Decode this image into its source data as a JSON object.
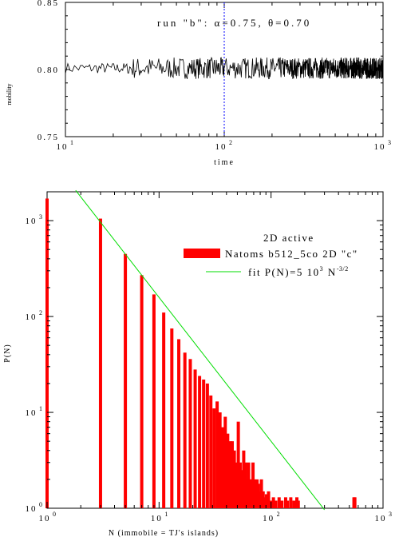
{
  "chart_data": [
    {
      "type": "line",
      "annotation": "run \"b\":   α=0.75,  θ=0.70",
      "xlabel": "time",
      "ylabel": "mobility",
      "x_scale": "log",
      "xlim": [
        10,
        1000
      ],
      "ylim": [
        0.75,
        0.85
      ],
      "x_tick_bases": [
        "1",
        "1",
        "1"
      ],
      "x_tick_exps": [
        "1",
        "2",
        "3"
      ],
      "y_ticks": [
        "0.75",
        "0.80",
        "0.85"
      ],
      "y_tick_values": [
        0.75,
        0.8,
        0.85
      ],
      "marker_line_x": 100,
      "marker_color": "#0000ff",
      "line_color": "#000000",
      "mean_value": 0.801,
      "noise_small": 0.004,
      "noise_large": 0.008,
      "grid": false
    },
    {
      "type": "bar",
      "xlabel": "N  (immobile = TJ's islands)",
      "ylabel": "P(N)",
      "x_scale": "log",
      "y_scale": "log",
      "xlim": [
        1,
        1000
      ],
      "ylim": [
        1,
        2000
      ],
      "x_tick_exps": [
        "0",
        "1",
        "2",
        "3"
      ],
      "y_tick_exps": [
        "0",
        "1",
        "2",
        "3"
      ],
      "tick_base": "10",
      "bar_color": "#ff0000",
      "fit_color": "#00dd00",
      "legend": {
        "title": "2D  active",
        "bar_label": "Natoms b512_5co 2D \"c\"",
        "fit_label": "fit P(N)=5 10",
        "fit_exp1": "3",
        "fit_mid": " N",
        "fit_exp2": "-3/2",
        "placement": "top-right"
      },
      "fit_coefficient": 5000,
      "fit_exponent": -1.5,
      "fit_range": [
        1.8,
        300
      ],
      "values": [
        [
          1,
          1700
        ],
        [
          3,
          1050
        ],
        [
          5,
          450
        ],
        [
          7,
          270
        ],
        [
          9,
          170
        ],
        [
          11,
          110
        ],
        [
          13,
          75
        ],
        [
          15,
          58
        ],
        [
          17,
          42
        ],
        [
          19,
          36
        ],
        [
          21,
          28
        ],
        [
          23,
          24
        ],
        [
          25,
          22
        ],
        [
          27,
          20
        ],
        [
          29,
          15
        ],
        [
          31,
          11
        ],
        [
          33,
          13
        ],
        [
          35,
          10
        ],
        [
          37,
          7
        ],
        [
          39,
          9
        ],
        [
          41,
          6
        ],
        [
          43,
          5
        ],
        [
          45,
          5
        ],
        [
          47,
          4
        ],
        [
          49,
          3
        ],
        [
          51,
          8
        ],
        [
          53,
          3
        ],
        [
          55,
          2.5
        ],
        [
          57,
          4
        ],
        [
          59,
          3
        ],
        [
          61,
          2
        ],
        [
          63,
          3
        ],
        [
          65,
          2
        ],
        [
          67,
          2
        ],
        [
          69,
          3
        ],
        [
          71,
          2
        ],
        [
          73,
          1.5
        ],
        [
          75,
          2
        ],
        [
          77,
          1.8
        ],
        [
          79,
          1.5
        ],
        [
          82,
          2
        ],
        [
          85,
          1.5
        ],
        [
          88,
          1.3
        ],
        [
          91,
          1.4
        ],
        [
          95,
          1.5
        ],
        [
          100,
          1.2
        ],
        [
          105,
          1.3
        ],
        [
          110,
          1.2
        ],
        [
          118,
          1.3
        ],
        [
          125,
          1.2
        ],
        [
          135,
          1.3
        ],
        [
          140,
          1.2
        ],
        [
          150,
          1.3
        ],
        [
          160,
          1.2
        ],
        [
          170,
          1.3
        ],
        [
          175,
          1.2
        ],
        [
          550,
          1.3
        ],
        [
          560,
          1.3
        ]
      ]
    }
  ]
}
